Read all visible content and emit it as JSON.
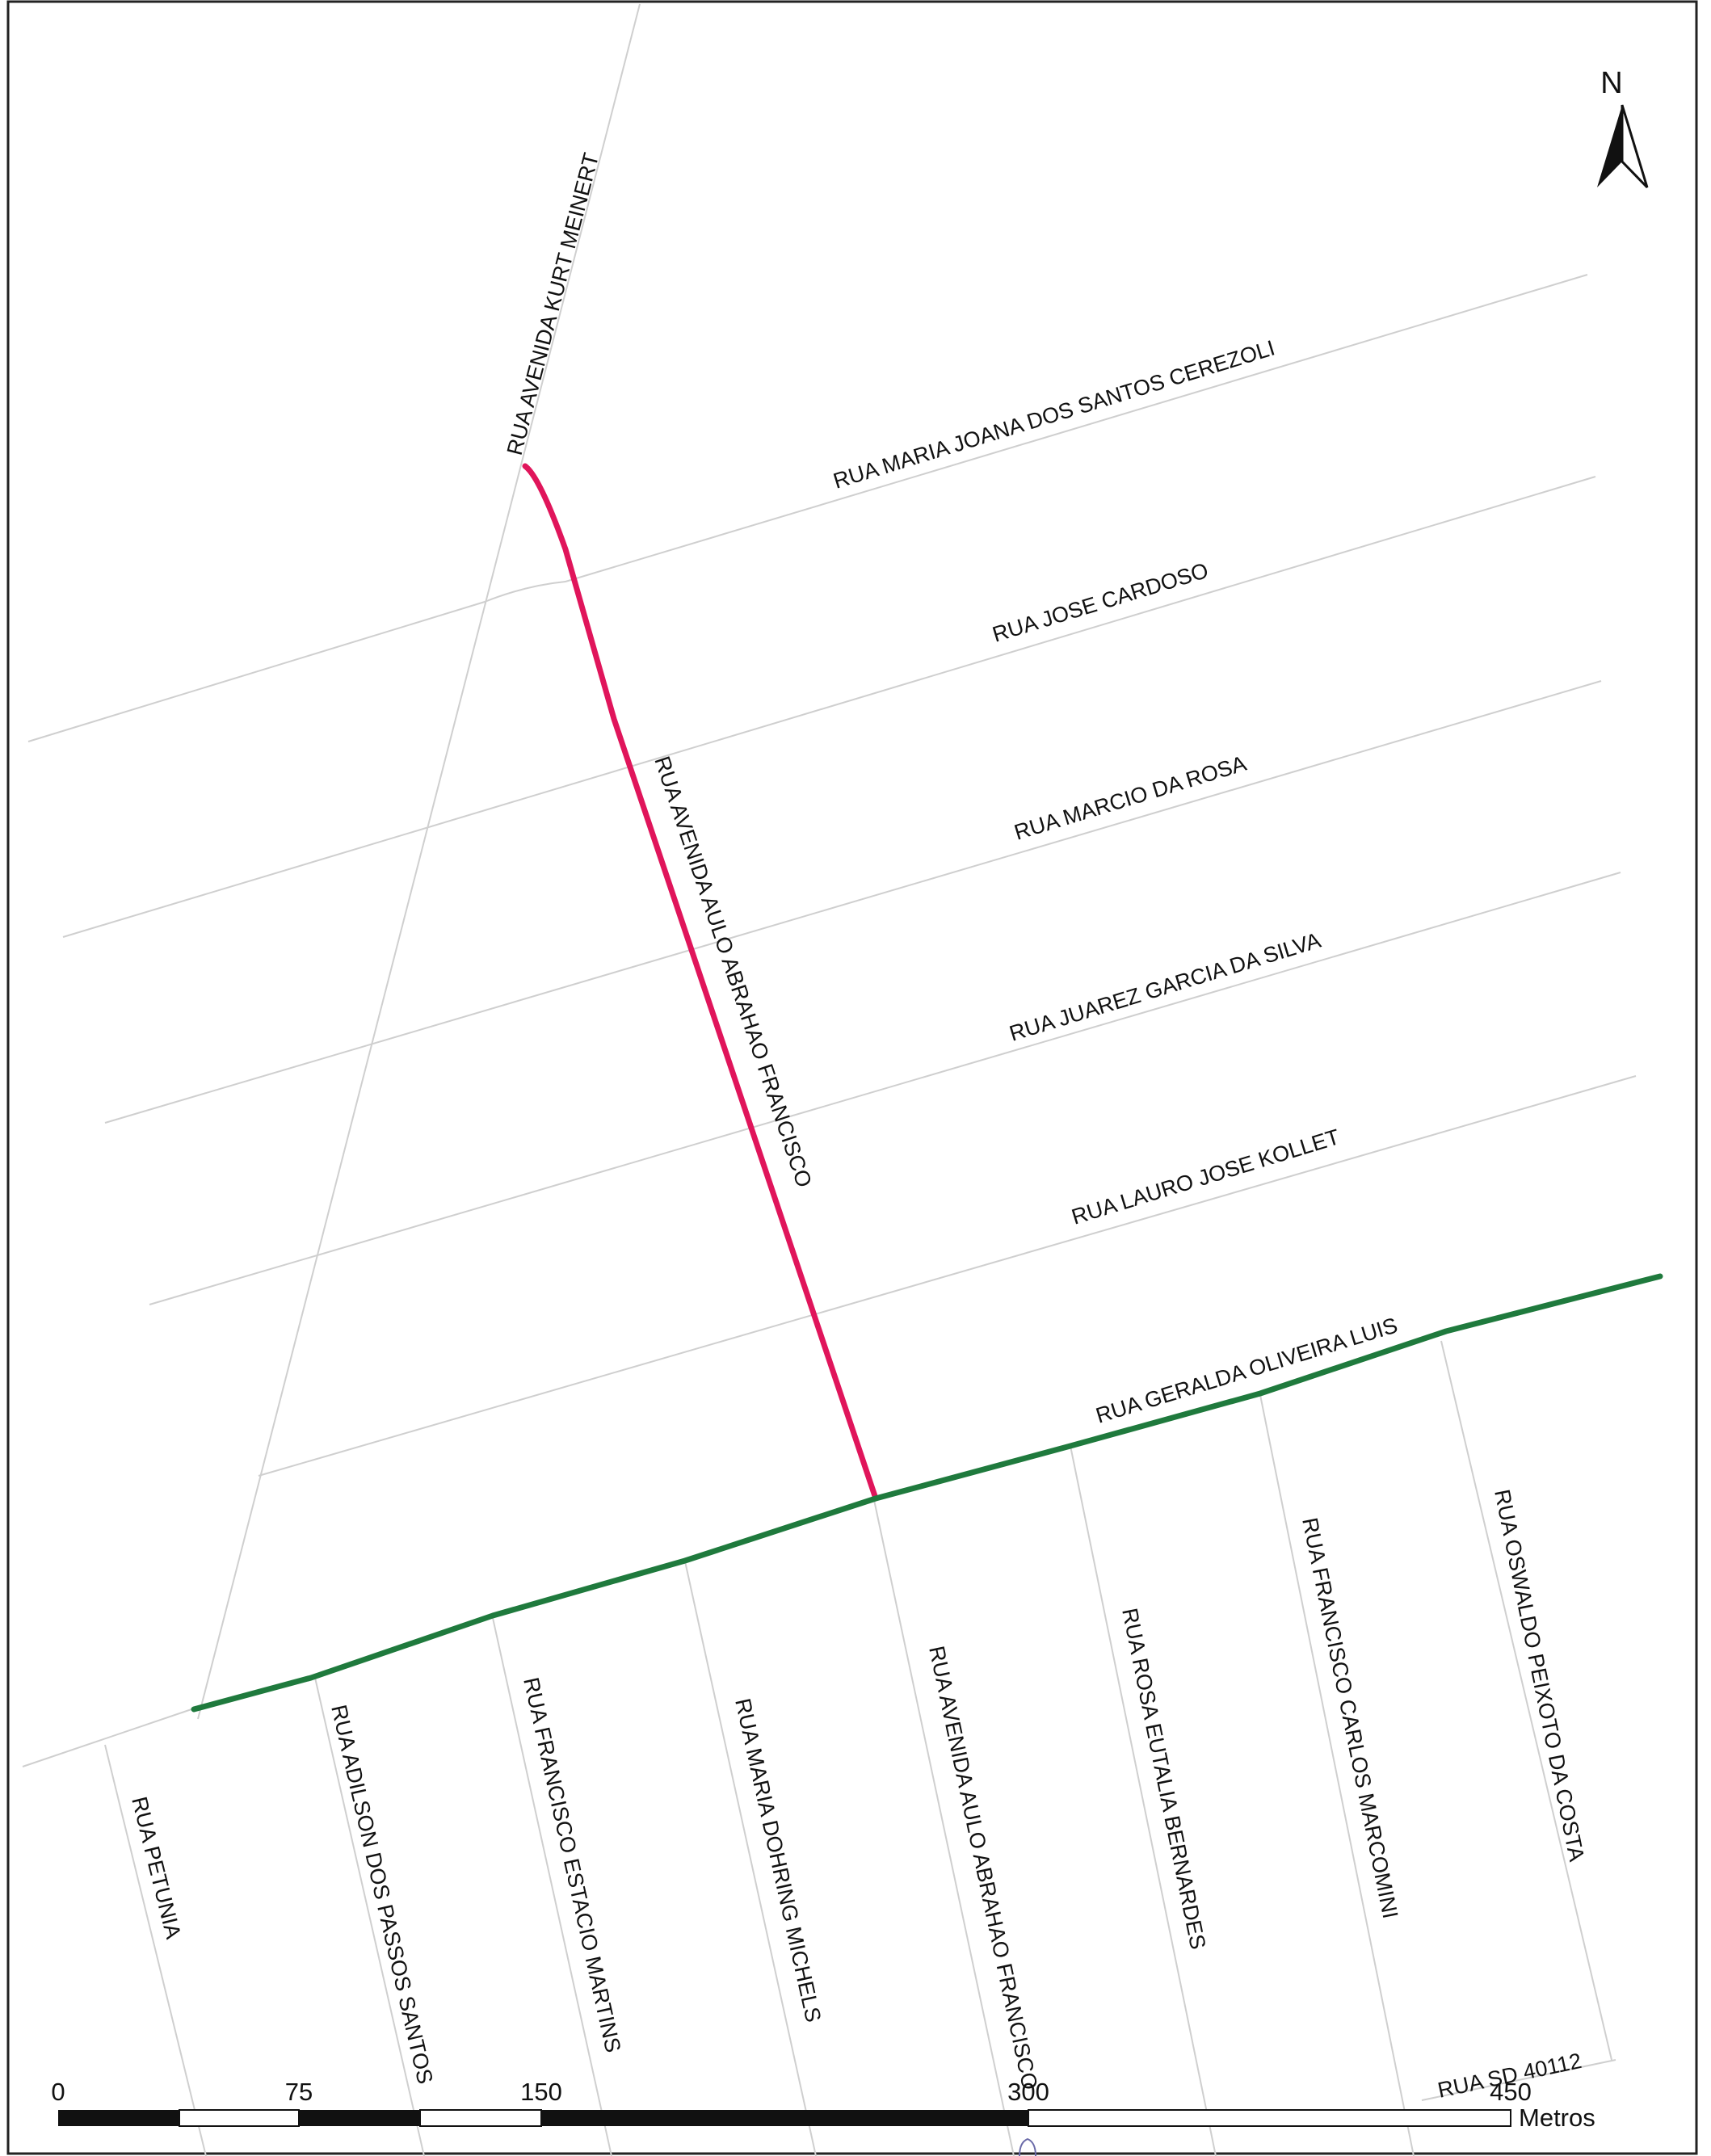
{
  "map": {
    "highlight_colors": {
      "magenta_route": "#e0155b",
      "green_route": "#1f7a3d",
      "street": "#cfcfcf"
    },
    "north_arrow": {
      "letter": "N",
      "icon": "north-arrow-icon"
    },
    "street_labels": {
      "kurt_meinert": "RUA AVENIDA KURT MEINERT",
      "maria_joana": "RUA MARIA JOANA DOS SANTOS CEREZOLI",
      "jose_cardoso": "RUA JOSE CARDOSO",
      "marcio_rosa": "RUA MARCIO DA ROSA",
      "juarez_garcia": "RUA JUAREZ GARCIA DA SILVA",
      "lauro_kollet": "RUA LAURO JOSE KOLLET",
      "geralda_oliveira": "RUA GERALDA OLIVEIRA LUIS",
      "aulo_abrahao_north": "RUA AVENIDA AULO ABRAHAO FRANCISCO",
      "aulo_abrahao_south": "RUA AVENIDA AULO ABRAHAO FRANCISCO",
      "petunia": "RUA PETUNIA",
      "adilson_passos": "RUA ADILSON DOS PASSOS SANTOS",
      "francisco_estacio": "RUA FRANCISCO ESTACIO MARTINS",
      "maria_dohring": "RUA MARIA DOHRING MICHELS",
      "rosa_eutalia": "RUA ROSA EUTALIA BERNARDES",
      "francisco_carlos": "RUA FRANCISCO CARLOS MARCOMINI",
      "oswaldo_peixoto": "RUA OSWALDO PEIXOTO DA COSTA",
      "sd_40112": "RUA SD 40112"
    },
    "scale_bar": {
      "ticks": [
        "0",
        "75",
        "150",
        "300",
        "450"
      ],
      "unit": "Metros"
    }
  }
}
